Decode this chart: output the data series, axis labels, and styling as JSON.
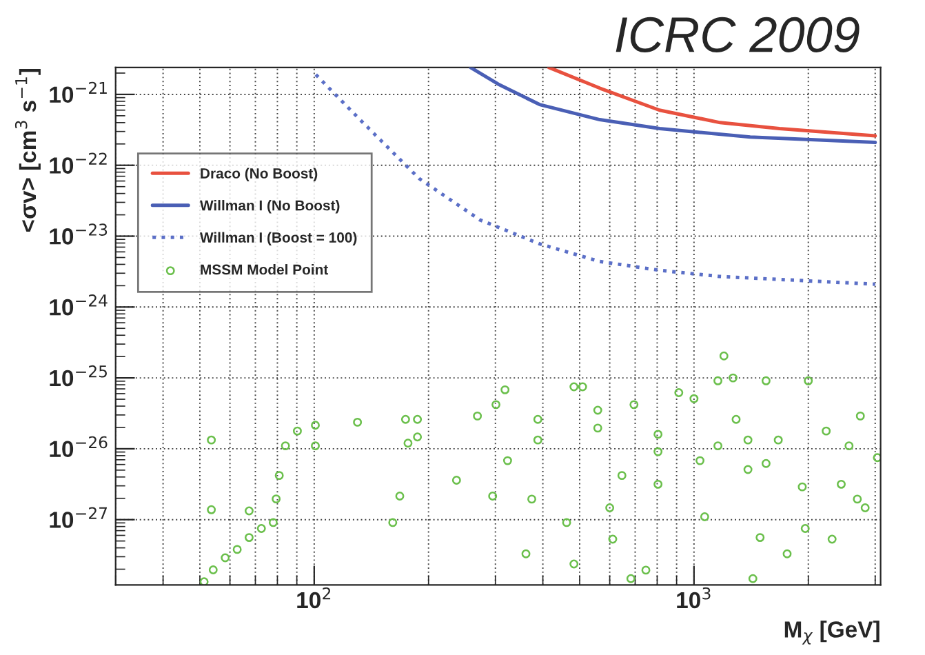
{
  "chart_data": {
    "type": "line",
    "title": "ICRC 2009",
    "xlabel": "M$_{χ}$ [GeV]",
    "ylabel": "<σv> [cm$^{3}$ s$^{−1}$]",
    "log": "xy",
    "xlim": [
      30,
      3100
    ],
    "ylim": [
      1.2e-28,
      2.4e-21
    ],
    "xticks": [
      {
        "value": 100,
        "label": "10$^{2}$"
      },
      {
        "value": 1000,
        "label": "10$^{3}$"
      }
    ],
    "yticks": [
      {
        "value": 1e-27,
        "label": "10$^{−27}$"
      },
      {
        "value": 1e-26,
        "label": "10$^{−26}$"
      },
      {
        "value": 1e-25,
        "label": "10$^{−25}$"
      },
      {
        "value": 1e-24,
        "label": "10$^{−24}$"
      },
      {
        "value": 1e-23,
        "label": "10$^{−23}$"
      },
      {
        "value": 1e-22,
        "label": "10$^{−22}$"
      },
      {
        "value": 1e-21,
        "label": "10$^{−21}$"
      }
    ],
    "grid": true,
    "legend": "left",
    "series": [
      {
        "name": "Draco (No Boost)",
        "color": "#e8513f",
        "line_style": "solid",
        "x": [
          415,
          566,
          811,
          1172,
          1679,
          3000
        ],
        "values": [
          2.4e-21,
          1.22e-21,
          6e-22,
          4e-22,
          3.3e-22,
          2.6e-22
        ]
      },
      {
        "name": "Willman I (No Boost)",
        "color": "#4a5fb5",
        "line_style": "solid",
        "x": [
          258,
          305,
          392,
          565,
          813,
          1406,
          3000
        ],
        "values": [
          2.4e-21,
          1.4e-21,
          7.2e-22,
          4.4e-22,
          3.3e-22,
          2.5e-22,
          2.1e-22
        ]
      },
      {
        "name": "Willman I (Boost = 100)",
        "color": "#5b6fc7",
        "line_style": "dotted",
        "x": [
          101,
          132,
          189,
          273,
          392,
          564,
          811,
          1167,
          3000
        ],
        "values": [
          1.9e-21,
          4.4e-22,
          6.5e-23,
          1.7e-23,
          7.8e-24,
          4.4e-24,
          3.3e-24,
          2.7e-24,
          2.1e-24
        ]
      },
      {
        "name": "MSSM Model Point",
        "type": "scatter",
        "color": "#6abf4b",
        "marker": "circle",
        "x": [
          51.3,
          54.2,
          58.3,
          62.7,
          67.4,
          72.6,
          78.0,
          79.4,
          80.9,
          84.0,
          90.3,
          100.7,
          130,
          174,
          176.6,
          187,
          269,
          388,
          558,
          804,
          1156,
          1548,
          100.7,
          187,
          388,
          804,
          1387,
          67.4,
          53.6,
          53.6,
          168,
          161,
          237,
          301,
          318,
          295,
          374,
          361,
          509,
          483,
          462,
          483,
          600,
          611,
          682,
          747,
          804,
          912,
          1000,
          1067,
          1156,
          1199,
          1267,
          1429,
          1493,
          1548,
          1667,
          1759,
          1963,
          2000,
          2229,
          2310,
          2442,
          2560,
          2742,
          2692,
          2823,
          3040,
          1928,
          558,
          695,
          1037,
          1291,
          1387,
          323,
          646
        ],
        "values": [
          1.33e-28,
          1.96e-28,
          2.9e-28,
          3.8e-28,
          5.6e-28,
          7.5e-28,
          9.1e-28,
          1.96e-27,
          4.2e-27,
          1.1e-26,
          1.78e-26,
          2.15e-26,
          2.37e-26,
          2.6e-26,
          1.2e-26,
          2.6e-26,
          2.9e-26,
          2.6e-26,
          1.96e-26,
          1.6e-26,
          1.1e-26,
          6.2e-27,
          1.1e-26,
          1.47e-26,
          1.33e-26,
          9.1e-27,
          5.1e-27,
          1.33e-27,
          1.33e-26,
          1.38e-27,
          2.15e-27,
          9.1e-28,
          3.6e-27,
          4.2e-26,
          6.8e-26,
          2.15e-27,
          1.95e-27,
          3.3e-28,
          7.5e-26,
          7.5e-26,
          9.1e-28,
          2.37e-28,
          1.47e-27,
          5.3e-28,
          1.47e-28,
          1.94e-28,
          3.16e-27,
          6.2e-26,
          5.1e-26,
          1.1e-27,
          9.1e-26,
          2.04e-25,
          1e-25,
          1.47e-28,
          5.6e-28,
          9.1e-26,
          1.33e-26,
          3.3e-28,
          7.5e-28,
          9.1e-26,
          1.78e-26,
          5.3e-28,
          3.16e-27,
          1.1e-26,
          2.9e-26,
          1.95e-27,
          1.47e-27,
          7.5e-27,
          2.9e-27,
          3.5e-26,
          4.2e-26,
          6.8e-27,
          2.6e-26,
          1.33e-26,
          6.8e-27,
          4.2e-27
        ]
      }
    ]
  }
}
